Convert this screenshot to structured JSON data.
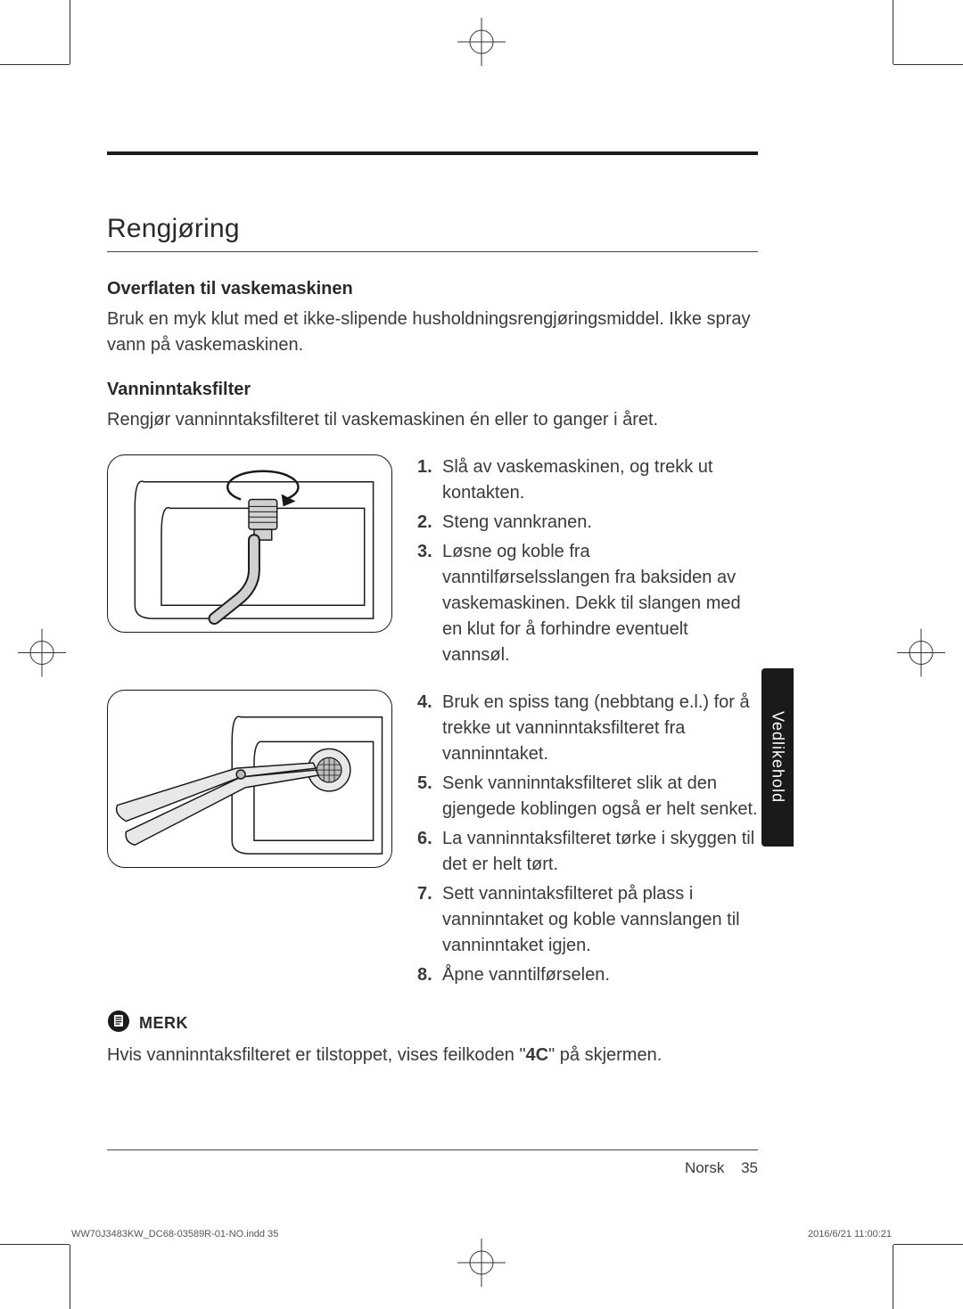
{
  "page": {
    "language_label": "Norsk",
    "page_number": "35",
    "side_tab": "Vedlikehold",
    "indd_file": "WW70J3483KW_DC68-03589R-01-NO.indd   35",
    "indd_timestamp": "2016/6/21   11:00:21"
  },
  "section": {
    "title": "Rengjøring",
    "sub1": {
      "title": "Overflaten til vaskemaskinen",
      "body": "Bruk en myk klut med et ikke-slipende husholdningsrengjøringsmiddel. Ikke spray vann på vaskemaskinen."
    },
    "sub2": {
      "title": "Vanninntaksfilter",
      "body": "Rengjør vanninntaksfilteret til vaskemaskinen én eller to ganger i året."
    }
  },
  "steps_a": [
    {
      "n": "1.",
      "t": "Slå av vaskemaskinen, og trekk ut kontakten."
    },
    {
      "n": "2.",
      "t": "Steng vannkranen."
    },
    {
      "n": "3.",
      "t": "Løsne og koble fra vanntilførselsslangen fra baksiden av vaskemaskinen. Dekk til slangen med en klut for å forhindre eventuelt vannsøl."
    }
  ],
  "steps_b": [
    {
      "n": "4.",
      "t": "Bruk en spiss tang (nebbtang e.l.) for å trekke ut vanninntaksfilteret fra vanninntaket."
    },
    {
      "n": "5.",
      "t": "Senk vanninntaksfilteret slik at den gjengede koblingen også er helt senket."
    },
    {
      "n": "6.",
      "t": "La vanninntaksfilteret tørke i skyggen til det er helt tørt."
    },
    {
      "n": "7.",
      "t": "Sett vannintaksfilteret på plass i vanninntaket og koble vannslangen til vanninntaket igjen."
    },
    {
      "n": "8.",
      "t": "Åpne vanntilførselen."
    }
  ],
  "note": {
    "label": "MERK",
    "text_pre": "Hvis vanninntaksfilteret er tilstoppet, vises feilkoden \"",
    "code": "4C",
    "text_post": "\" på skjermen."
  },
  "style": {
    "rule_color": "#1a1a1a",
    "text_color": "#3a3a3a",
    "tab_bg": "#1a1a1a",
    "tab_fg": "#ffffff",
    "body_fontsize": 20,
    "title_fontsize": 30
  }
}
